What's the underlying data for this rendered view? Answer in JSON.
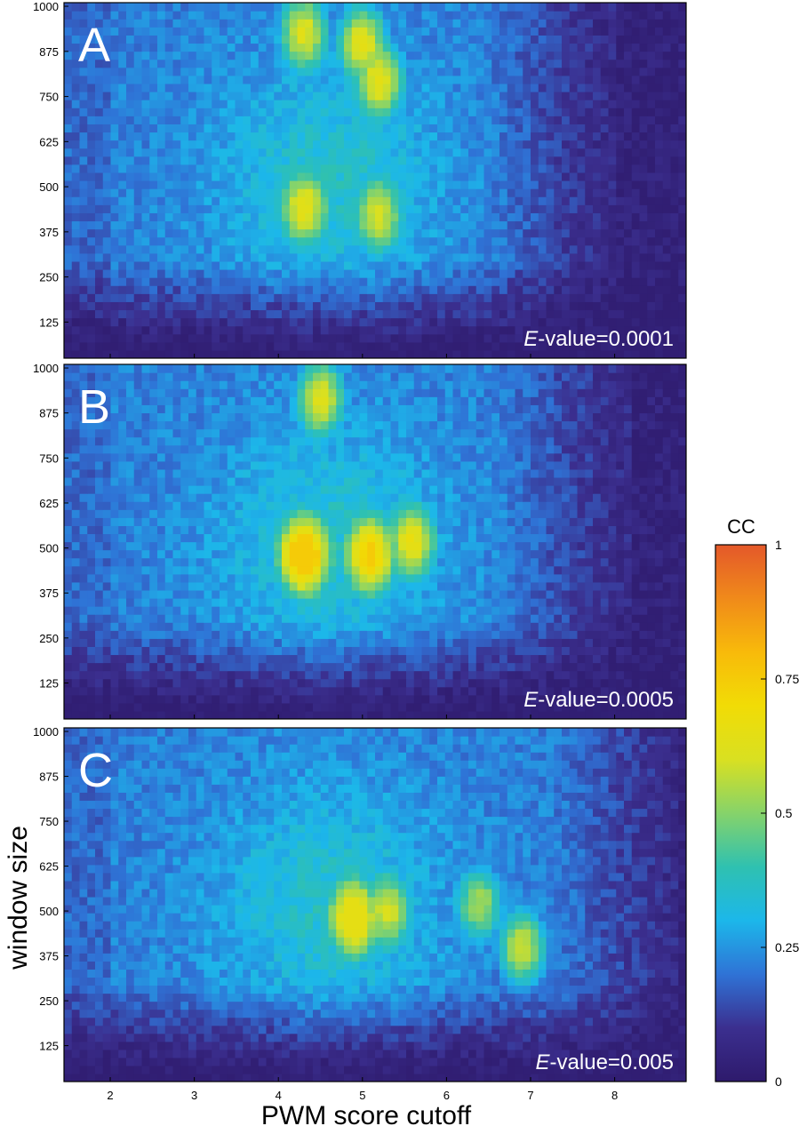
{
  "chart_data": {
    "type": "heatmap",
    "xlabel": "PWM score cutoff",
    "ylabel": "window size",
    "x_ticks": [
      2,
      3,
      4,
      5,
      6,
      7,
      8
    ],
    "y_ticks": [
      125,
      250,
      375,
      500,
      625,
      750,
      875,
      1000
    ],
    "xlim": [
      1.45,
      8.85
    ],
    "ylim": [
      25,
      1010
    ],
    "colorbar": {
      "title": "CC",
      "range": [
        0,
        1
      ],
      "ticks": [
        0,
        0.25,
        0.5,
        0.75,
        1
      ],
      "tick_labels": [
        "0",
        "0.25",
        "0.5",
        "0.75",
        "1"
      ],
      "colormap": [
        "#2e1a6c",
        "#3b2f8f",
        "#2f73d6",
        "#1cb7ea",
        "#2fc1b0",
        "#86d36a",
        "#d9e021",
        "#f1dc06",
        "#f8ba0a",
        "#f08a1a",
        "#e4582a"
      ]
    },
    "panels": [
      {
        "label": "A",
        "annotation_prefix": "E",
        "annotation_suffix": "-value=0.0001",
        "evalue": 0.0001,
        "hotspots": [
          {
            "x": 4.3,
            "y": 930,
            "peak_cc": 0.6
          },
          {
            "x": 5.0,
            "y": 900,
            "peak_cc": 0.62
          },
          {
            "x": 5.2,
            "y": 800,
            "peak_cc": 0.6
          },
          {
            "x": 4.3,
            "y": 440,
            "peak_cc": 0.52
          },
          {
            "x": 5.2,
            "y": 420,
            "peak_cc": 0.5
          }
        ],
        "max_cc": 0.65
      },
      {
        "label": "B",
        "annotation_prefix": "E",
        "annotation_suffix": "-value=0.0005",
        "evalue": 0.0005,
        "hotspots": [
          {
            "x": 4.3,
            "y": 480,
            "peak_cc": 0.72
          },
          {
            "x": 5.1,
            "y": 480,
            "peak_cc": 0.64
          },
          {
            "x": 4.5,
            "y": 920,
            "peak_cc": 0.6
          },
          {
            "x": 5.6,
            "y": 520,
            "peak_cc": 0.58
          }
        ],
        "max_cc": 0.75
      },
      {
        "label": "C",
        "annotation_prefix": "E",
        "annotation_suffix": "-value=0.005",
        "evalue": 0.005,
        "hotspots": [
          {
            "x": 4.9,
            "y": 480,
            "peak_cc": 0.62
          },
          {
            "x": 6.9,
            "y": 400,
            "peak_cc": 0.58
          },
          {
            "x": 6.4,
            "y": 520,
            "peak_cc": 0.52
          },
          {
            "x": 5.3,
            "y": 500,
            "peak_cc": 0.5
          }
        ],
        "max_cc": 0.65
      }
    ]
  }
}
